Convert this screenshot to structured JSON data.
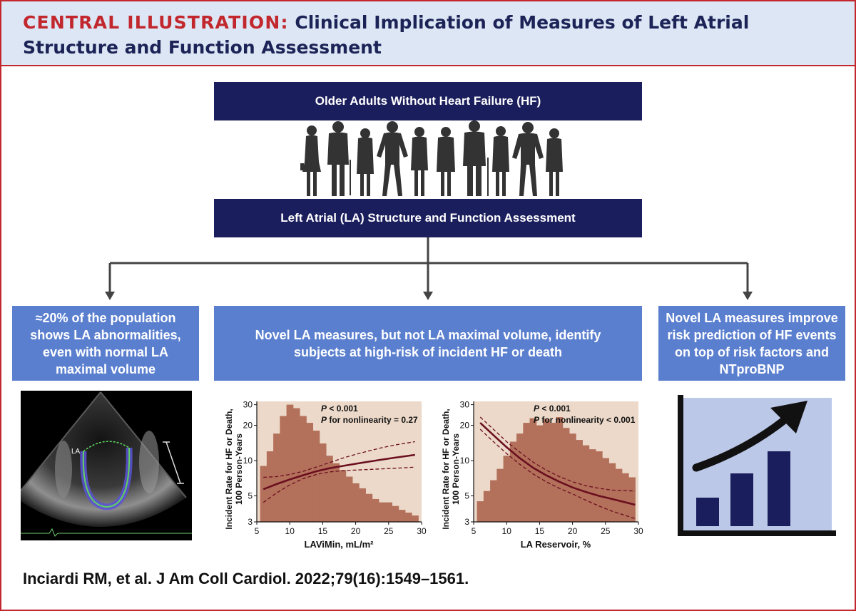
{
  "header": {
    "label": "CENTRAL ILLUSTRATION:",
    "title": "Clinical Implication of Measures of Left Atrial Structure and Function Assessment"
  },
  "top_box": "Older Adults Without Heart Failure (HF)",
  "middle_box": "Left Atrial (LA) Structure and Function Assessment",
  "left_box": "≈20% of the population shows LA abnormalities, even with normal LA maximal volume",
  "center_box": "Novel LA measures, but not LA maximal volume, identify subjects at high-risk of incident HF or death",
  "right_box": "Novel LA measures improve risk prediction of HF events on top of risk factors and NTproBNP",
  "echo_label": "LA",
  "icons": {
    "people": "people-silhouettes-icon",
    "growth": "bar-chart-rising-arrow-icon"
  },
  "colors": {
    "navy": "#1b1e5c",
    "blue": "#5b7fcf",
    "red": "#c1272d",
    "plot_bg": "#ecd9c9",
    "histogram": "#b3705b",
    "curve": "#6b0f1f"
  },
  "chart_data": [
    {
      "type": "line",
      "xlabel": "LAViMin, mL/m²",
      "ylabel_lines": [
        "Incident Rate for HF or Death,",
        "100 Person-Years"
      ],
      "scale_y": "log",
      "xlim": [
        5,
        30
      ],
      "ylim": [
        3,
        32
      ],
      "xticks": [
        5,
        10,
        15,
        20,
        25,
        30
      ],
      "yticks": [
        3,
        5,
        10,
        20,
        30
      ],
      "annotations": [
        {
          "italic": "P",
          "text": " < 0.001"
        },
        {
          "italic": "P",
          "text": " for nonlinearity = 0.27"
        }
      ],
      "histogram": {
        "x": [
          6,
          7,
          8,
          9,
          10,
          11,
          12,
          13,
          14,
          15,
          16,
          17,
          18,
          19,
          20,
          21,
          22,
          23,
          24,
          25,
          26,
          27,
          28,
          29
        ],
        "y": [
          9,
          12,
          17,
          24,
          30,
          28,
          24,
          21,
          18,
          14,
          11,
          9.5,
          8.3,
          7.3,
          6.4,
          5.8,
          5.2,
          4.7,
          4.4,
          4.4,
          4.1,
          3.8,
          3.6,
          3.4
        ]
      },
      "series": [
        {
          "x": [
            6,
            8,
            10,
            12,
            14,
            16,
            18,
            20,
            22,
            24,
            26,
            29
          ],
          "y": [
            5.7,
            6.3,
            6.9,
            7.5,
            8.1,
            8.6,
            9.0,
            9.4,
            9.8,
            10.2,
            10.6,
            11.2
          ]
        },
        {
          "x": [
            6,
            8,
            10,
            12,
            14,
            16,
            18,
            20,
            22,
            24,
            26,
            29
          ],
          "y": [
            7.2,
            7.3,
            7.6,
            8.1,
            8.8,
            9.6,
            10.5,
            11.3,
            12.1,
            12.9,
            13.6,
            14.5
          ]
        },
        {
          "x": [
            6,
            8,
            10,
            12,
            14,
            16,
            18,
            20,
            22,
            24,
            26,
            29
          ],
          "y": [
            4.4,
            5.3,
            6.2,
            7.0,
            7.6,
            8.0,
            8.2,
            8.3,
            8.4,
            8.5,
            8.6,
            8.8
          ]
        }
      ]
    },
    {
      "type": "line",
      "xlabel": "LA Reservoir, %",
      "ylabel_lines": [
        "Incident Rate for HF or Death,",
        "100 Person-Years"
      ],
      "scale_y": "log",
      "xlim": [
        5,
        30
      ],
      "ylim": [
        3,
        32
      ],
      "xticks": [
        5,
        10,
        15,
        20,
        25,
        30
      ],
      "yticks": [
        3,
        5,
        10,
        20,
        30
      ],
      "annotations": [
        {
          "italic": "P",
          "text": " < 0.001"
        },
        {
          "italic": "P",
          "text": " for nonlinearity < 0.001"
        }
      ],
      "histogram": {
        "x": [
          6,
          7,
          8,
          9,
          10,
          11,
          12,
          13,
          14,
          15,
          16,
          17,
          18,
          19,
          20,
          21,
          22,
          23,
          24,
          25,
          26,
          27,
          28,
          29
        ],
        "y": [
          4.5,
          5.5,
          6.8,
          8.5,
          11,
          14.5,
          17,
          21,
          23,
          20,
          22.5,
          21,
          23.5,
          19,
          17,
          15,
          13.5,
          12.5,
          12,
          10.5,
          9.5,
          8.5,
          7.8,
          7.2
        ]
      },
      "series": [
        {
          "x": [
            6,
            8,
            10,
            12,
            14,
            16,
            18,
            20,
            22,
            24,
            26,
            29.5
          ],
          "y": [
            21,
            16.5,
            13,
            10.5,
            8.7,
            7.5,
            6.6,
            5.9,
            5.4,
            5.0,
            4.7,
            4.2
          ]
        },
        {
          "x": [
            6,
            8,
            10,
            12,
            14,
            16,
            18,
            20,
            22,
            24,
            26,
            29.5
          ],
          "y": [
            23.5,
            18.5,
            14.5,
            11.8,
            9.7,
            8.3,
            7.3,
            6.6,
            6.1,
            5.8,
            5.6,
            5.5
          ]
        },
        {
          "x": [
            6,
            8,
            10,
            12,
            14,
            16,
            18,
            20,
            22,
            24,
            26,
            29.5
          ],
          "y": [
            18.5,
            14.5,
            11.5,
            9.3,
            7.7,
            6.6,
            5.8,
            5.2,
            4.6,
            4.1,
            3.7,
            3.2
          ]
        }
      ]
    }
  ],
  "citation": "Inciardi RM, et al. J Am Coll Cardiol. 2022;79(16):1549–1561."
}
